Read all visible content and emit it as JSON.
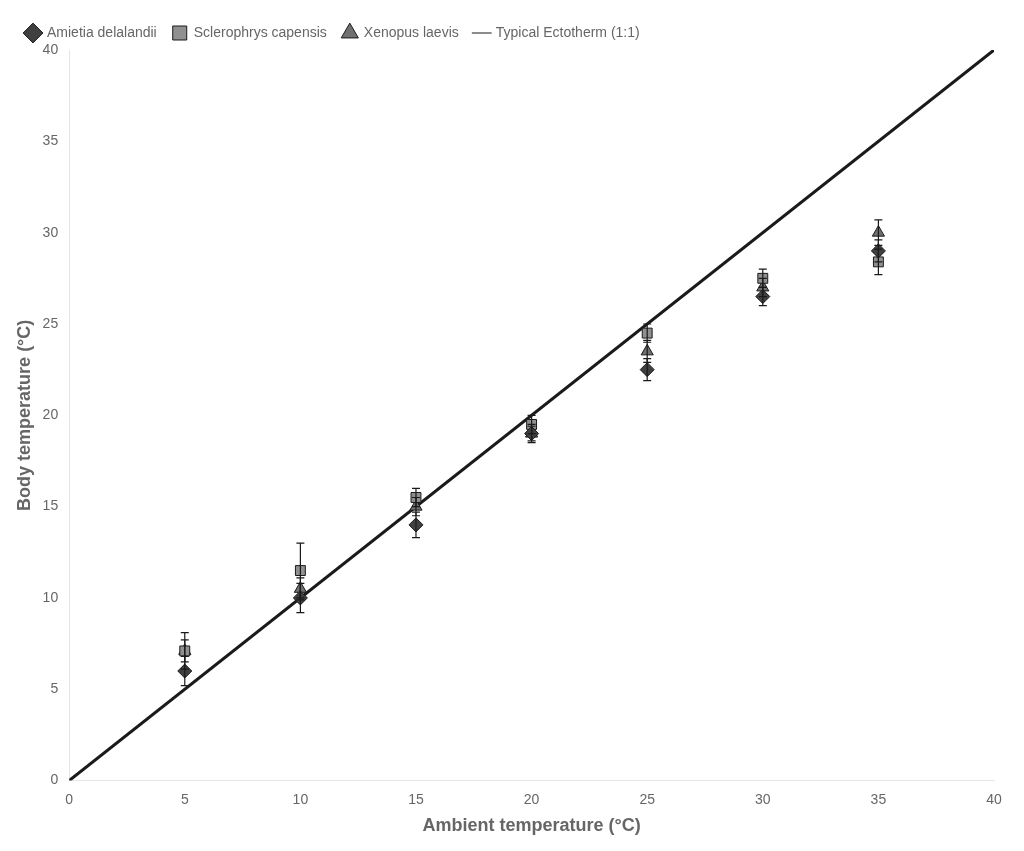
{
  "chart_data": {
    "type": "scatter",
    "xlabel": "Ambient temperature (°C)",
    "ylabel": "Body temperature (°C)",
    "xlim": [
      0,
      40
    ],
    "ylim": [
      0,
      40
    ],
    "xticks": [
      0,
      5,
      10,
      15,
      20,
      25,
      30,
      35,
      40
    ],
    "yticks": [
      0,
      5,
      10,
      15,
      20,
      25,
      30,
      35,
      40
    ],
    "grid": false,
    "legend": "upper left",
    "series": [
      {
        "name": "Typical Ectotherm (1:1)",
        "type": "line",
        "color": "#1a1a1a",
        "x": [
          0,
          40
        ],
        "values": [
          0,
          40
        ]
      },
      {
        "name": "Amietia delalandii",
        "type": "scatter",
        "marker": "diamond",
        "color": "#404040",
        "x": [
          5,
          10,
          15,
          20,
          25,
          30,
          35
        ],
        "values": [
          6.0,
          10.0,
          14.0,
          19.0,
          22.5,
          26.5,
          29.0
        ],
        "yerr": [
          0.8,
          0.8,
          0.7,
          0.5,
          0.6,
          0.5,
          0.6
        ]
      },
      {
        "name": "Sclerophrys capensis",
        "type": "scatter",
        "marker": "square",
        "color": "#909090",
        "x": [
          5,
          10,
          15,
          20,
          25,
          30,
          35
        ],
        "values": [
          7.1,
          11.5,
          15.5,
          19.5,
          24.5,
          27.5,
          28.4
        ],
        "yerr": [
          0.6,
          1.5,
          0.5,
          0.5,
          0.5,
          0.5,
          0.7
        ]
      },
      {
        "name": "Xenopus laevis",
        "type": "scatter",
        "marker": "triangle",
        "color": "#707070",
        "x": [
          5,
          10,
          15,
          20,
          25,
          30,
          35
        ],
        "values": [
          7.1,
          10.5,
          15.0,
          19.0,
          23.5,
          27.0,
          30.0
        ],
        "yerr": [
          1.0,
          0.6,
          0.5,
          0.4,
          0.6,
          0.5,
          0.7
        ]
      }
    ]
  }
}
